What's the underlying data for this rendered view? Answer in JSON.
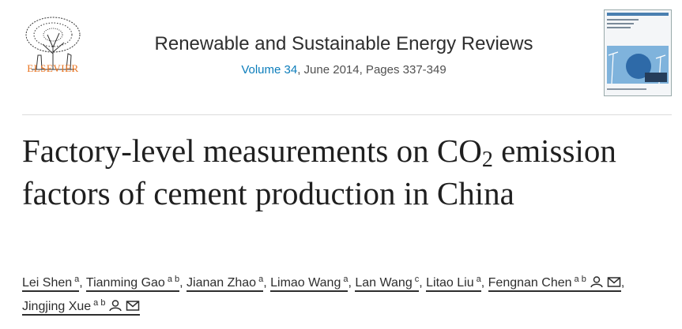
{
  "header": {
    "publisher": "ELSEVIER",
    "journal": "Renewable and Sustainable Energy Reviews",
    "volume": "Volume 34",
    "issue_info": ", June 2014, Pages 337-349"
  },
  "article": {
    "title_start": "Factory-level measurements on CO",
    "title_subscript": "2",
    "title_end": " emission factors of cement production in China"
  },
  "authors": {
    "separator": ",",
    "list": [
      {
        "name": "Lei Shen",
        "affiliations": "a",
        "corresponding": false
      },
      {
        "name": "Tianming Gao",
        "affiliations": "a b",
        "corresponding": false
      },
      {
        "name": "Jianan Zhao",
        "affiliations": "a",
        "corresponding": false
      },
      {
        "name": "Limao Wang",
        "affiliations": "a",
        "corresponding": false
      },
      {
        "name": "Lan Wang",
        "affiliations": "c",
        "corresponding": false
      },
      {
        "name": "Litao Liu",
        "affiliations": "a",
        "corresponding": false
      },
      {
        "name": "Fengnan Chen",
        "affiliations": "a b",
        "corresponding": true
      },
      {
        "name": "Jingjing Xue",
        "affiliations": "a b",
        "corresponding": true
      }
    ]
  }
}
